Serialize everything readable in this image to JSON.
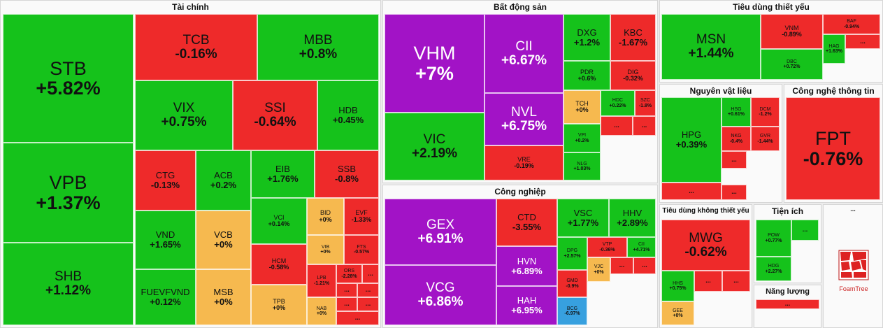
{
  "colors": {
    "up": "#15c21b",
    "down": "#ee2a2a",
    "ref": "#f6b94f",
    "ceiling": "#a213c6",
    "floor": "#37a0df"
  },
  "sectors": [
    {
      "name": "Tài chính",
      "tiles": [
        {
          "t": "STB",
          "p": "+5.82%",
          "c": "up"
        },
        {
          "t": "VPB",
          "p": "+1.37%",
          "c": "up"
        },
        {
          "t": "SHB",
          "p": "+1.12%",
          "c": "up"
        },
        {
          "t": "TCB",
          "p": "-0.16%",
          "c": "down"
        },
        {
          "t": "MBB",
          "p": "+0.8%",
          "c": "up"
        },
        {
          "t": "VIX",
          "p": "+0.75%",
          "c": "up"
        },
        {
          "t": "SSI",
          "p": "-0.64%",
          "c": "down"
        },
        {
          "t": "HDB",
          "p": "+0.45%",
          "c": "up"
        },
        {
          "t": "CTG",
          "p": "-0.13%",
          "c": "down"
        },
        {
          "t": "ACB",
          "p": "+0.2%",
          "c": "up"
        },
        {
          "t": "EIB",
          "p": "+1.76%",
          "c": "up"
        },
        {
          "t": "SSB",
          "p": "-0.8%",
          "c": "down"
        },
        {
          "t": "VND",
          "p": "+1.65%",
          "c": "up"
        },
        {
          "t": "VCB",
          "p": "+0%",
          "c": "ref"
        },
        {
          "t": "VCI",
          "p": "+0.14%",
          "c": "up"
        },
        {
          "t": "BID",
          "p": "+0%",
          "c": "ref"
        },
        {
          "t": "EVF",
          "p": "-1.33%",
          "c": "down"
        },
        {
          "t": "VIB",
          "p": "+0%",
          "c": "ref"
        },
        {
          "t": "FTS",
          "p": "-0.57%",
          "c": "down"
        },
        {
          "t": "HCM",
          "p": "-0.58%",
          "c": "down"
        },
        {
          "t": "FUEVFVND",
          "p": "+0.12%",
          "c": "up"
        },
        {
          "t": "MSB",
          "p": "+0%",
          "c": "ref"
        },
        {
          "t": "TPB",
          "p": "+0%",
          "c": "ref"
        },
        {
          "t": "LPB",
          "p": "-1.21%",
          "c": "down"
        },
        {
          "t": "ORS",
          "p": "-2.28%",
          "c": "down"
        },
        {
          "t": "NAB",
          "p": "+0%",
          "c": "ref"
        },
        {
          "t": "...",
          "p": "",
          "c": "down"
        }
      ]
    },
    {
      "name": "Bất động sản",
      "tiles": [
        {
          "t": "VHM",
          "p": "+7%",
          "c": "ceiling"
        },
        {
          "t": "CII",
          "p": "+6.67%",
          "c": "ceiling"
        },
        {
          "t": "NVL",
          "p": "+6.75%",
          "c": "ceiling"
        },
        {
          "t": "VIC",
          "p": "+2.19%",
          "c": "up"
        },
        {
          "t": "VRE",
          "p": "-0.19%",
          "c": "down"
        },
        {
          "t": "DXG",
          "p": "+1.2%",
          "c": "up"
        },
        {
          "t": "KBC",
          "p": "-1.67%",
          "c": "down"
        },
        {
          "t": "PDR",
          "p": "+0.6%",
          "c": "up"
        },
        {
          "t": "DIG",
          "p": "-0.32%",
          "c": "down"
        },
        {
          "t": "TCH",
          "p": "+0%",
          "c": "ref"
        },
        {
          "t": "HDC",
          "p": "+0.22%",
          "c": "up"
        },
        {
          "t": "SZC",
          "p": "-1.8%",
          "c": "down"
        },
        {
          "t": "VPI",
          "p": "+0.2%",
          "c": "up"
        },
        {
          "t": "NLG",
          "p": "+1.03%",
          "c": "up"
        },
        {
          "t": "...",
          "p": "",
          "c": "down"
        }
      ]
    },
    {
      "name": "Công nghiệp",
      "tiles": [
        {
          "t": "GEX",
          "p": "+6.91%",
          "c": "ceiling"
        },
        {
          "t": "VCG",
          "p": "+6.86%",
          "c": "ceiling"
        },
        {
          "t": "CTD",
          "p": "-3.55%",
          "c": "down"
        },
        {
          "t": "VSC",
          "p": "+1.77%",
          "c": "up"
        },
        {
          "t": "HHV",
          "p": "+2.89%",
          "c": "up"
        },
        {
          "t": "HVN",
          "p": "+6.89%",
          "c": "ceiling"
        },
        {
          "t": "HAH",
          "p": "+6.95%",
          "c": "ceiling"
        },
        {
          "t": "DPG",
          "p": "+2.57%",
          "c": "up"
        },
        {
          "t": "VTP",
          "p": "-0.36%",
          "c": "down"
        },
        {
          "t": "CII",
          "p": "+4.71%",
          "c": "up"
        },
        {
          "t": "GMD",
          "p": "-0.9%",
          "c": "down"
        },
        {
          "t": "VJC",
          "p": "+0%",
          "c": "ref"
        },
        {
          "t": "BCG",
          "p": "-6.97%",
          "c": "floor"
        },
        {
          "t": "...",
          "p": "",
          "c": "down"
        }
      ]
    },
    {
      "name": "Tiêu dùng thiết yếu",
      "tiles": [
        {
          "t": "MSN",
          "p": "+1.44%",
          "c": "up"
        },
        {
          "t": "VNM",
          "p": "-0.89%",
          "c": "down"
        },
        {
          "t": "DBC",
          "p": "+0.72%",
          "c": "up"
        },
        {
          "t": "BAF",
          "p": "-0.94%",
          "c": "down"
        },
        {
          "t": "HAG",
          "p": "+1.63%",
          "c": "up"
        },
        {
          "t": "...",
          "p": "",
          "c": "down"
        }
      ]
    },
    {
      "name": "Nguyên vật liệu",
      "tiles": [
        {
          "t": "HPG",
          "p": "+0.39%",
          "c": "up"
        },
        {
          "t": "HSG",
          "p": "+0.61%",
          "c": "up"
        },
        {
          "t": "DCM",
          "p": "-1.2%",
          "c": "down"
        },
        {
          "t": "NKG",
          "p": "-0.4%",
          "c": "down"
        },
        {
          "t": "GVR",
          "p": "-1.44%",
          "c": "down"
        },
        {
          "t": "...",
          "p": "",
          "c": "down"
        }
      ]
    },
    {
      "name": "Công nghệ thông tin",
      "tiles": [
        {
          "t": "FPT",
          "p": "-0.76%",
          "c": "down"
        }
      ]
    },
    {
      "name": "Tiêu dùng không thiết yếu",
      "tiles": [
        {
          "t": "MWG",
          "p": "-0.62%",
          "c": "down"
        },
        {
          "t": "HHS",
          "p": "+0.75%",
          "c": "up"
        },
        {
          "t": "GEE",
          "p": "+0%",
          "c": "ref"
        },
        {
          "t": "...",
          "p": "",
          "c": "down"
        }
      ]
    },
    {
      "name": "Tiện ích",
      "tiles": [
        {
          "t": "POW",
          "p": "+0.77%",
          "c": "up"
        },
        {
          "t": "HDG",
          "p": "+2.27%",
          "c": "up"
        },
        {
          "t": "...",
          "p": "",
          "c": "up"
        }
      ]
    },
    {
      "name": "Năng lượng",
      "tiles": [
        {
          "t": "...",
          "p": "",
          "c": "down"
        }
      ]
    },
    {
      "name": "...",
      "tiles": []
    }
  ],
  "chart_data": {
    "type": "treemap",
    "title": "",
    "series": [
      {
        "name": "Tài chính",
        "items": [
          [
            "STB",
            5.82
          ],
          [
            "VPB",
            1.37
          ],
          [
            "SHB",
            1.12
          ],
          [
            "TCB",
            -0.16
          ],
          [
            "MBB",
            0.8
          ],
          [
            "VIX",
            0.75
          ],
          [
            "SSI",
            -0.64
          ],
          [
            "HDB",
            0.45
          ],
          [
            "CTG",
            -0.13
          ],
          [
            "ACB",
            0.2
          ],
          [
            "EIB",
            1.76
          ],
          [
            "SSB",
            -0.8
          ],
          [
            "VND",
            1.65
          ],
          [
            "VCB",
            0
          ],
          [
            "VCI",
            0.14
          ],
          [
            "BID",
            0
          ],
          [
            "EVF",
            -1.33
          ],
          [
            "VIB",
            0
          ],
          [
            "FTS",
            -0.57
          ],
          [
            "HCM",
            -0.58
          ],
          [
            "FUEVFVND",
            0.12
          ],
          [
            "MSB",
            0
          ],
          [
            "TPB",
            0
          ],
          [
            "LPB",
            -1.21
          ],
          [
            "ORS",
            -2.28
          ],
          [
            "NAB",
            0
          ]
        ]
      },
      {
        "name": "Bất động sản",
        "items": [
          [
            "VHM",
            7
          ],
          [
            "CII",
            6.67
          ],
          [
            "NVL",
            6.75
          ],
          [
            "VIC",
            2.19
          ],
          [
            "VRE",
            -0.19
          ],
          [
            "DXG",
            1.2
          ],
          [
            "KBC",
            -1.67
          ],
          [
            "PDR",
            0.6
          ],
          [
            "DIG",
            -0.32
          ],
          [
            "TCH",
            0
          ],
          [
            "HDC",
            0.22
          ],
          [
            "SZC",
            -1.8
          ],
          [
            "VPI",
            0.2
          ],
          [
            "NLG",
            1.03
          ]
        ]
      },
      {
        "name": "Công nghiệp",
        "items": [
          [
            "GEX",
            6.91
          ],
          [
            "VCG",
            6.86
          ],
          [
            "CTD",
            -3.55
          ],
          [
            "VSC",
            1.77
          ],
          [
            "HHV",
            2.89
          ],
          [
            "HVN",
            6.89
          ],
          [
            "HAH",
            6.95
          ],
          [
            "DPG",
            2.57
          ],
          [
            "VTP",
            -0.36
          ],
          [
            "CII",
            4.71
          ],
          [
            "GMD",
            -0.9
          ],
          [
            "VJC",
            0
          ],
          [
            "BCG",
            -6.97
          ]
        ]
      },
      {
        "name": "Tiêu dùng thiết yếu",
        "items": [
          [
            "MSN",
            1.44
          ],
          [
            "VNM",
            -0.89
          ],
          [
            "DBC",
            0.72
          ],
          [
            "BAF",
            -0.94
          ],
          [
            "HAG",
            1.63
          ]
        ]
      },
      {
        "name": "Nguyên vật liệu",
        "items": [
          [
            "HPG",
            0.39
          ],
          [
            "HSG",
            0.61
          ],
          [
            "DCM",
            -1.2
          ],
          [
            "NKG",
            -0.4
          ],
          [
            "GVR",
            -1.44
          ]
        ]
      },
      {
        "name": "Công nghệ thông tin",
        "items": [
          [
            "FPT",
            -0.76
          ]
        ]
      },
      {
        "name": "Tiêu dùng không thiết yếu",
        "items": [
          [
            "MWG",
            -0.62
          ],
          [
            "HHS",
            0.75
          ],
          [
            "GEE",
            0
          ]
        ]
      },
      {
        "name": "Tiện ích",
        "items": [
          [
            "POW",
            0.77
          ],
          [
            "HDG",
            2.27
          ]
        ]
      }
    ]
  },
  "logo": {
    "label": "FoamTree"
  }
}
